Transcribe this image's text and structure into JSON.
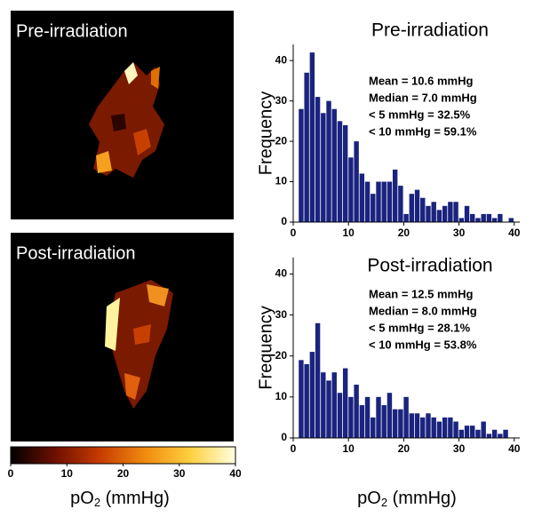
{
  "images": [
    {
      "label": "Pre-irradiation"
    },
    {
      "label": "Post-irradiation"
    }
  ],
  "chart_data": [
    {
      "type": "histogram",
      "title": "Pre-irradiation",
      "y_label": "Frequency",
      "bins": [
        1,
        2,
        3,
        4,
        5,
        6,
        7,
        8,
        9,
        10,
        11,
        12,
        13,
        14,
        15,
        16,
        17,
        18,
        19,
        20,
        21,
        22,
        23,
        24,
        25,
        26,
        27,
        28,
        29,
        30,
        31,
        32,
        33,
        34,
        35,
        36,
        37,
        38,
        39,
        40
      ],
      "values": [
        28,
        37,
        42,
        31,
        27,
        30,
        28,
        25,
        24,
        16,
        20,
        12,
        10,
        7,
        10,
        10,
        10,
        13,
        9,
        2,
        7,
        8,
        6,
        4,
        5,
        3,
        4,
        5,
        5,
        1,
        4,
        2,
        1,
        2,
        2,
        1,
        2,
        0,
        1
      ],
      "color": "#1a237e",
      "xlim": [
        0,
        41
      ],
      "xticks": [
        0,
        10,
        20,
        30,
        40
      ],
      "ylim": [
        0,
        44
      ],
      "yticks": [
        0,
        10,
        20,
        30,
        40
      ],
      "annotations": [
        "Mean = 10.6 mmHg",
        "Median = 7.0 mmHg",
        "< 5 mmHg = 32.5%",
        "< 10 mmHg = 59.1%"
      ]
    },
    {
      "type": "histogram",
      "title": "Post-irradiation",
      "y_label": "Frequency",
      "bins": [
        1,
        2,
        3,
        4,
        5,
        6,
        7,
        8,
        9,
        10,
        11,
        12,
        13,
        14,
        15,
        16,
        17,
        18,
        19,
        20,
        21,
        22,
        23,
        24,
        25,
        26,
        27,
        28,
        29,
        30,
        31,
        32,
        33,
        34,
        35,
        36,
        37,
        38,
        39,
        40
      ],
      "values": [
        19,
        18,
        21,
        28,
        16,
        14,
        16,
        11,
        17,
        10,
        13,
        8,
        10,
        5,
        10,
        8,
        11,
        7,
        7,
        10,
        6,
        6,
        5,
        6,
        5,
        4,
        5,
        5,
        4,
        2,
        3,
        3,
        2,
        4,
        1,
        2,
        1,
        2,
        0
      ],
      "color": "#1a237e",
      "xlim": [
        0,
        41
      ],
      "xticks": [
        0,
        10,
        20,
        30,
        40
      ],
      "ylim": [
        0,
        44
      ],
      "yticks": [
        0,
        10,
        20,
        30,
        40
      ],
      "annotations": [
        "Mean = 12.5 mmHg",
        "Median = 8.0 mmHg",
        "< 5 mmHg = 28.1%",
        "< 10 mmHg = 53.8%"
      ],
      "x_label": {
        "text": "pO",
        "sub": "2",
        "rest": " (mmHg)"
      }
    },
    {
      "type": "colorbar",
      "xlim": [
        0,
        40
      ],
      "xticks": [
        0,
        10,
        20,
        30,
        40
      ],
      "colors": [
        "#000000",
        "#6e1000",
        "#c83c00",
        "#f08c10",
        "#ffd040",
        "#ffffe0"
      ],
      "x_label": {
        "text": "pO",
        "sub": "2",
        "rest": " (mmHg)"
      }
    }
  ]
}
